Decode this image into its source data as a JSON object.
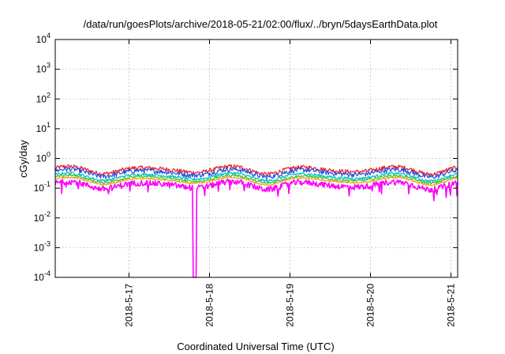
{
  "chart_data": {
    "type": "line",
    "title": "/data/run/goesPlots/archive/2018-05-21/02:00/flux/../bryn/5daysEarthData.plot",
    "xlabel": "Coordinated Universal Time (UTC)",
    "ylabel": "cGy/day",
    "yscale": "log",
    "ylim": [
      0.0001,
      10000
    ],
    "xlim": [
      "2018-05-16 02:00",
      "2018-05-21 02:00"
    ],
    "grid": true,
    "y_ticks": [
      {
        "value": 0.0001,
        "base": "10",
        "exp": "-4"
      },
      {
        "value": 0.001,
        "base": "10",
        "exp": "-3"
      },
      {
        "value": 0.01,
        "base": "10",
        "exp": "-2"
      },
      {
        "value": 0.1,
        "base": "10",
        "exp": "-1"
      },
      {
        "value": 1,
        "base": "10",
        "exp": "0"
      },
      {
        "value": 10,
        "base": "10",
        "exp": "1"
      },
      {
        "value": 100,
        "base": "10",
        "exp": "2"
      },
      {
        "value": 1000,
        "base": "10",
        "exp": "3"
      },
      {
        "value": 10000,
        "base": "10",
        "exp": "4"
      }
    ],
    "x_ticks": [
      {
        "value": "2018-05-17 00:00",
        "label": "2018-5-17"
      },
      {
        "value": "2018-05-18 00:00",
        "label": "2018-5-18"
      },
      {
        "value": "2018-05-19 00:00",
        "label": "2018-5-19"
      },
      {
        "value": "2018-05-20 00:00",
        "label": "2018-5-20"
      },
      {
        "value": "2018-05-21 00:00",
        "label": "2018-5-21"
      }
    ],
    "series": [
      {
        "color": "#e8202a",
        "base": 0.42,
        "noise": 0.16
      },
      {
        "color": "#2a4fe0",
        "base": 0.34,
        "noise": 0.18
      },
      {
        "color": "#00c0c0",
        "base": 0.25,
        "noise": 0.1
      },
      {
        "color": "#3cc23c",
        "base": 0.21,
        "noise": 0.08
      },
      {
        "color": "#f0a000",
        "base": 0.18,
        "noise": 0.06
      },
      {
        "color": "#ff00ff",
        "base": 0.13,
        "noise": 0.22,
        "drop": {
          "at": "2018-05-17 19:30",
          "value": 0.0001
        }
      }
    ]
  }
}
